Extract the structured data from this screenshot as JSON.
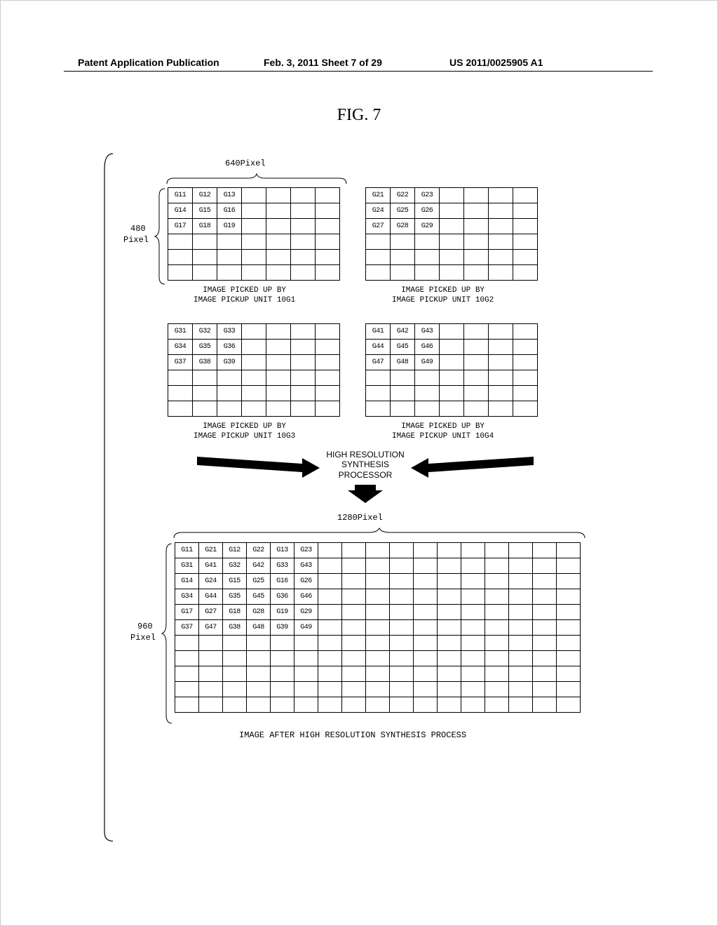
{
  "header": {
    "left": "Patent Application Publication",
    "mid": "Feb. 3, 2011  Sheet 7 of 29",
    "right": "US 2011/0025905 A1"
  },
  "figure_title": "FIG. 7",
  "small_dim_width": "640Pixel",
  "small_dim_height_num": "480",
  "small_dim_height_unit": "Pixel",
  "grids_small": {
    "g1": [
      [
        "G11",
        "G12",
        "G13",
        "",
        "",
        "",
        ""
      ],
      [
        "G14",
        "G15",
        "G16",
        "",
        "",
        "",
        ""
      ],
      [
        "G17",
        "G18",
        "G19",
        "",
        "",
        "",
        ""
      ],
      [
        "",
        "",
        "",
        "",
        "",
        "",
        ""
      ],
      [
        "",
        "",
        "",
        "",
        "",
        "",
        ""
      ],
      [
        "",
        "",
        "",
        "",
        "",
        "",
        ""
      ]
    ],
    "g2": [
      [
        "G21",
        "G22",
        "G23",
        "",
        "",
        "",
        ""
      ],
      [
        "G24",
        "G25",
        "G26",
        "",
        "",
        "",
        ""
      ],
      [
        "G27",
        "G28",
        "G29",
        "",
        "",
        "",
        ""
      ],
      [
        "",
        "",
        "",
        "",
        "",
        "",
        ""
      ],
      [
        "",
        "",
        "",
        "",
        "",
        "",
        ""
      ],
      [
        "",
        "",
        "",
        "",
        "",
        "",
        ""
      ]
    ],
    "g3": [
      [
        "G31",
        "G32",
        "G33",
        "",
        "",
        "",
        ""
      ],
      [
        "G34",
        "G35",
        "G36",
        "",
        "",
        "",
        ""
      ],
      [
        "G37",
        "G38",
        "G39",
        "",
        "",
        "",
        ""
      ],
      [
        "",
        "",
        "",
        "",
        "",
        "",
        ""
      ],
      [
        "",
        "",
        "",
        "",
        "",
        "",
        ""
      ],
      [
        "",
        "",
        "",
        "",
        "",
        "",
        ""
      ]
    ],
    "g4": [
      [
        "G41",
        "G42",
        "G43",
        "",
        "",
        "",
        ""
      ],
      [
        "G44",
        "G45",
        "G46",
        "",
        "",
        "",
        ""
      ],
      [
        "G47",
        "G48",
        "G49",
        "",
        "",
        "",
        ""
      ],
      [
        "",
        "",
        "",
        "",
        "",
        "",
        ""
      ],
      [
        "",
        "",
        "",
        "",
        "",
        "",
        ""
      ],
      [
        "",
        "",
        "",
        "",
        "",
        "",
        ""
      ]
    ]
  },
  "captions": {
    "g1_l1": "IMAGE PICKED UP BY",
    "g1_l2": "IMAGE PICKUP UNIT 10G1",
    "g2_l1": "IMAGE PICKED UP BY",
    "g2_l2": "IMAGE PICKUP UNIT 10G2",
    "g3_l1": "IMAGE PICKED UP BY",
    "g3_l2": "IMAGE PICKUP UNIT 10G3",
    "g4_l1": "IMAGE PICKED UP BY",
    "g4_l2": "IMAGE PICKUP UNIT 10G4"
  },
  "processor": {
    "l1": "HIGH RESOLUTION",
    "l2": "SYNTHESIS",
    "l3": "PROCESSOR"
  },
  "big_dim_width": "1280Pixel",
  "big_dim_height_num": "960",
  "big_dim_height_unit": "Pixel",
  "big_grid": [
    [
      "G11",
      "G21",
      "G12",
      "G22",
      "G13",
      "G23",
      "",
      "",
      "",
      "",
      "",
      "",
      "",
      "",
      "",
      "",
      ""
    ],
    [
      "G31",
      "G41",
      "G32",
      "G42",
      "G33",
      "G43",
      "",
      "",
      "",
      "",
      "",
      "",
      "",
      "",
      "",
      "",
      ""
    ],
    [
      "G14",
      "G24",
      "G15",
      "G25",
      "G16",
      "G26",
      "",
      "",
      "",
      "",
      "",
      "",
      "",
      "",
      "",
      "",
      ""
    ],
    [
      "G34",
      "G44",
      "G35",
      "G45",
      "G36",
      "G46",
      "",
      "",
      "",
      "",
      "",
      "",
      "",
      "",
      "",
      "",
      ""
    ],
    [
      "G17",
      "G27",
      "G18",
      "G28",
      "G19",
      "G29",
      "",
      "",
      "",
      "",
      "",
      "",
      "",
      "",
      "",
      "",
      ""
    ],
    [
      "G37",
      "G47",
      "G38",
      "G48",
      "G39",
      "G49",
      "",
      "",
      "",
      "",
      "",
      "",
      "",
      "",
      "",
      "",
      ""
    ],
    [
      "",
      "",
      "",
      "",
      "",
      "",
      "",
      "",
      "",
      "",
      "",
      "",
      "",
      "",
      "",
      "",
      ""
    ],
    [
      "",
      "",
      "",
      "",
      "",
      "",
      "",
      "",
      "",
      "",
      "",
      "",
      "",
      "",
      "",
      "",
      ""
    ],
    [
      "",
      "",
      "",
      "",
      "",
      "",
      "",
      "",
      "",
      "",
      "",
      "",
      "",
      "",
      "",
      "",
      ""
    ],
    [
      "",
      "",
      "",
      "",
      "",
      "",
      "",
      "",
      "",
      "",
      "",
      "",
      "",
      "",
      "",
      "",
      ""
    ],
    [
      "",
      "",
      "",
      "",
      "",
      "",
      "",
      "",
      "",
      "",
      "",
      "",
      "",
      "",
      "",
      "",
      ""
    ]
  ],
  "big_caption": "IMAGE AFTER HIGH RESOLUTION SYNTHESIS PROCESS",
  "colors": {
    "stroke": "#000000",
    "bg": "#ffffff"
  },
  "layout": {
    "small_grid_cols": 7,
    "small_grid_rows": 6,
    "big_grid_cols": 17,
    "big_grid_rows": 11
  }
}
